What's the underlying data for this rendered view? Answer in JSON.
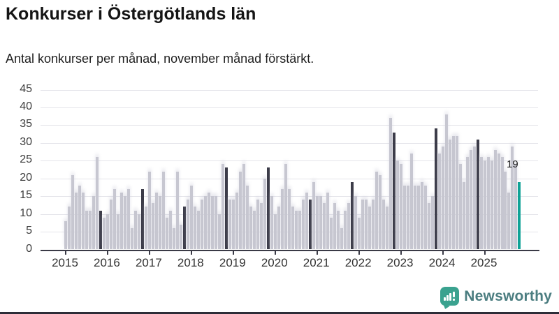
{
  "header": {
    "title": "Konkurser i Östergötlands län",
    "subtitle": "Antal konkurser per månad, november månad förstärkt."
  },
  "annotation": {
    "label": "19"
  },
  "footer": {
    "brand": "Newsworthy",
    "logo_icon": "bar-chart-pin-icon"
  },
  "colors": {
    "bar": "#c7c7d1",
    "november_bar": "#3c3c49",
    "current_bar": "#0fa296",
    "axis": "#3a3a46",
    "grid": "#e4e4ea",
    "brand_teal": "#3aa28f"
  },
  "chart_data": {
    "type": "bar",
    "title": "Konkurser i Östergötlands län",
    "subtitle": "Antal konkurser per månad, november månad förstärkt.",
    "ylabel": "",
    "xlabel": "",
    "ylim": [
      0,
      45
    ],
    "yticks": [
      0,
      5,
      10,
      15,
      20,
      25,
      30,
      35,
      40,
      45
    ],
    "grid": true,
    "legend_position": "none",
    "highlight_rule": "november månad förstärkt (mörka staplar = november)",
    "last_bar": {
      "month": "2025-11",
      "value": 19,
      "label": "19",
      "style": "current"
    },
    "years": [
      {
        "year": "2015",
        "values": [
          8,
          12,
          21,
          16,
          18,
          16,
          11,
          11,
          15,
          26,
          11,
          9
        ]
      },
      {
        "year": "2016",
        "values": [
          10,
          14,
          17,
          10,
          16,
          15,
          17,
          6,
          11,
          10,
          17,
          12
        ]
      },
      {
        "year": "2017",
        "values": [
          22,
          13,
          16,
          15,
          22,
          9,
          11,
          6,
          22,
          7,
          12,
          14
        ]
      },
      {
        "year": "2018",
        "values": [
          18,
          12,
          11,
          14,
          15,
          16,
          15,
          15,
          10,
          24,
          23,
          14
        ]
      },
      {
        "year": "2019",
        "values": [
          14,
          16,
          22,
          24,
          18,
          12,
          11,
          14,
          13,
          20,
          23,
          15
        ]
      },
      {
        "year": "2020",
        "values": [
          10,
          12,
          17,
          24,
          17,
          12,
          11,
          11,
          14,
          16,
          14,
          19
        ]
      },
      {
        "year": "2021",
        "values": [
          15,
          15,
          13,
          16,
          9,
          13,
          11,
          6,
          11,
          13,
          19,
          15
        ]
      },
      {
        "year": "2022",
        "values": [
          9,
          14,
          14,
          12,
          14,
          22,
          21,
          14,
          12,
          37,
          33,
          25
        ]
      },
      {
        "year": "2023",
        "values": [
          24,
          18,
          18,
          27,
          18,
          18,
          19,
          18,
          13,
          15,
          34,
          27
        ]
      },
      {
        "year": "2024",
        "values": [
          29,
          38,
          31,
          32,
          32,
          24,
          19,
          26,
          28,
          29,
          31,
          26
        ]
      },
      {
        "year": "2025",
        "values": [
          25,
          26,
          25,
          28,
          27,
          26,
          22,
          16,
          29,
          24,
          19
        ]
      }
    ]
  }
}
